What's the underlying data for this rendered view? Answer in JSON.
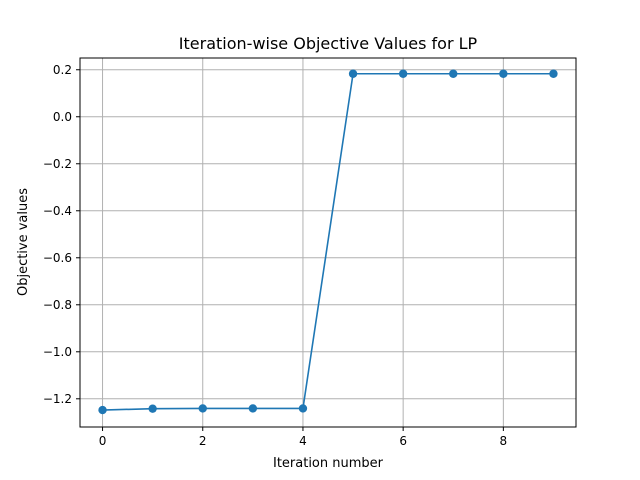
{
  "chart_data": {
    "type": "line",
    "title": "Iteration-wise Objective Values for LP",
    "xlabel": "Iteration number",
    "ylabel": "Objective values",
    "x": [
      0,
      1,
      2,
      3,
      4,
      5,
      6,
      7,
      8,
      9
    ],
    "series": [
      {
        "values": [
          -1.248,
          -1.242,
          -1.241,
          -1.241,
          -1.241,
          0.183,
          0.183,
          0.183,
          0.183,
          0.183
        ],
        "color": "#1f77b4",
        "marker": "circle"
      }
    ],
    "xlim": [
      -0.45,
      9.45
    ],
    "ylim": [
      -1.32,
      0.25
    ],
    "x_ticks": [
      0,
      2,
      4,
      6,
      8
    ],
    "x_tick_labels": [
      "0",
      "2",
      "4",
      "6",
      "8"
    ],
    "y_ticks": [
      -1.2,
      -1.0,
      -0.8,
      -0.6,
      -0.4,
      -0.2,
      0.0,
      0.2
    ],
    "y_tick_labels": [
      "−1.2",
      "−1.0",
      "−0.8",
      "−0.6",
      "−0.4",
      "−0.2",
      "0.0",
      "0.2"
    ],
    "grid": true,
    "legend": "none"
  }
}
